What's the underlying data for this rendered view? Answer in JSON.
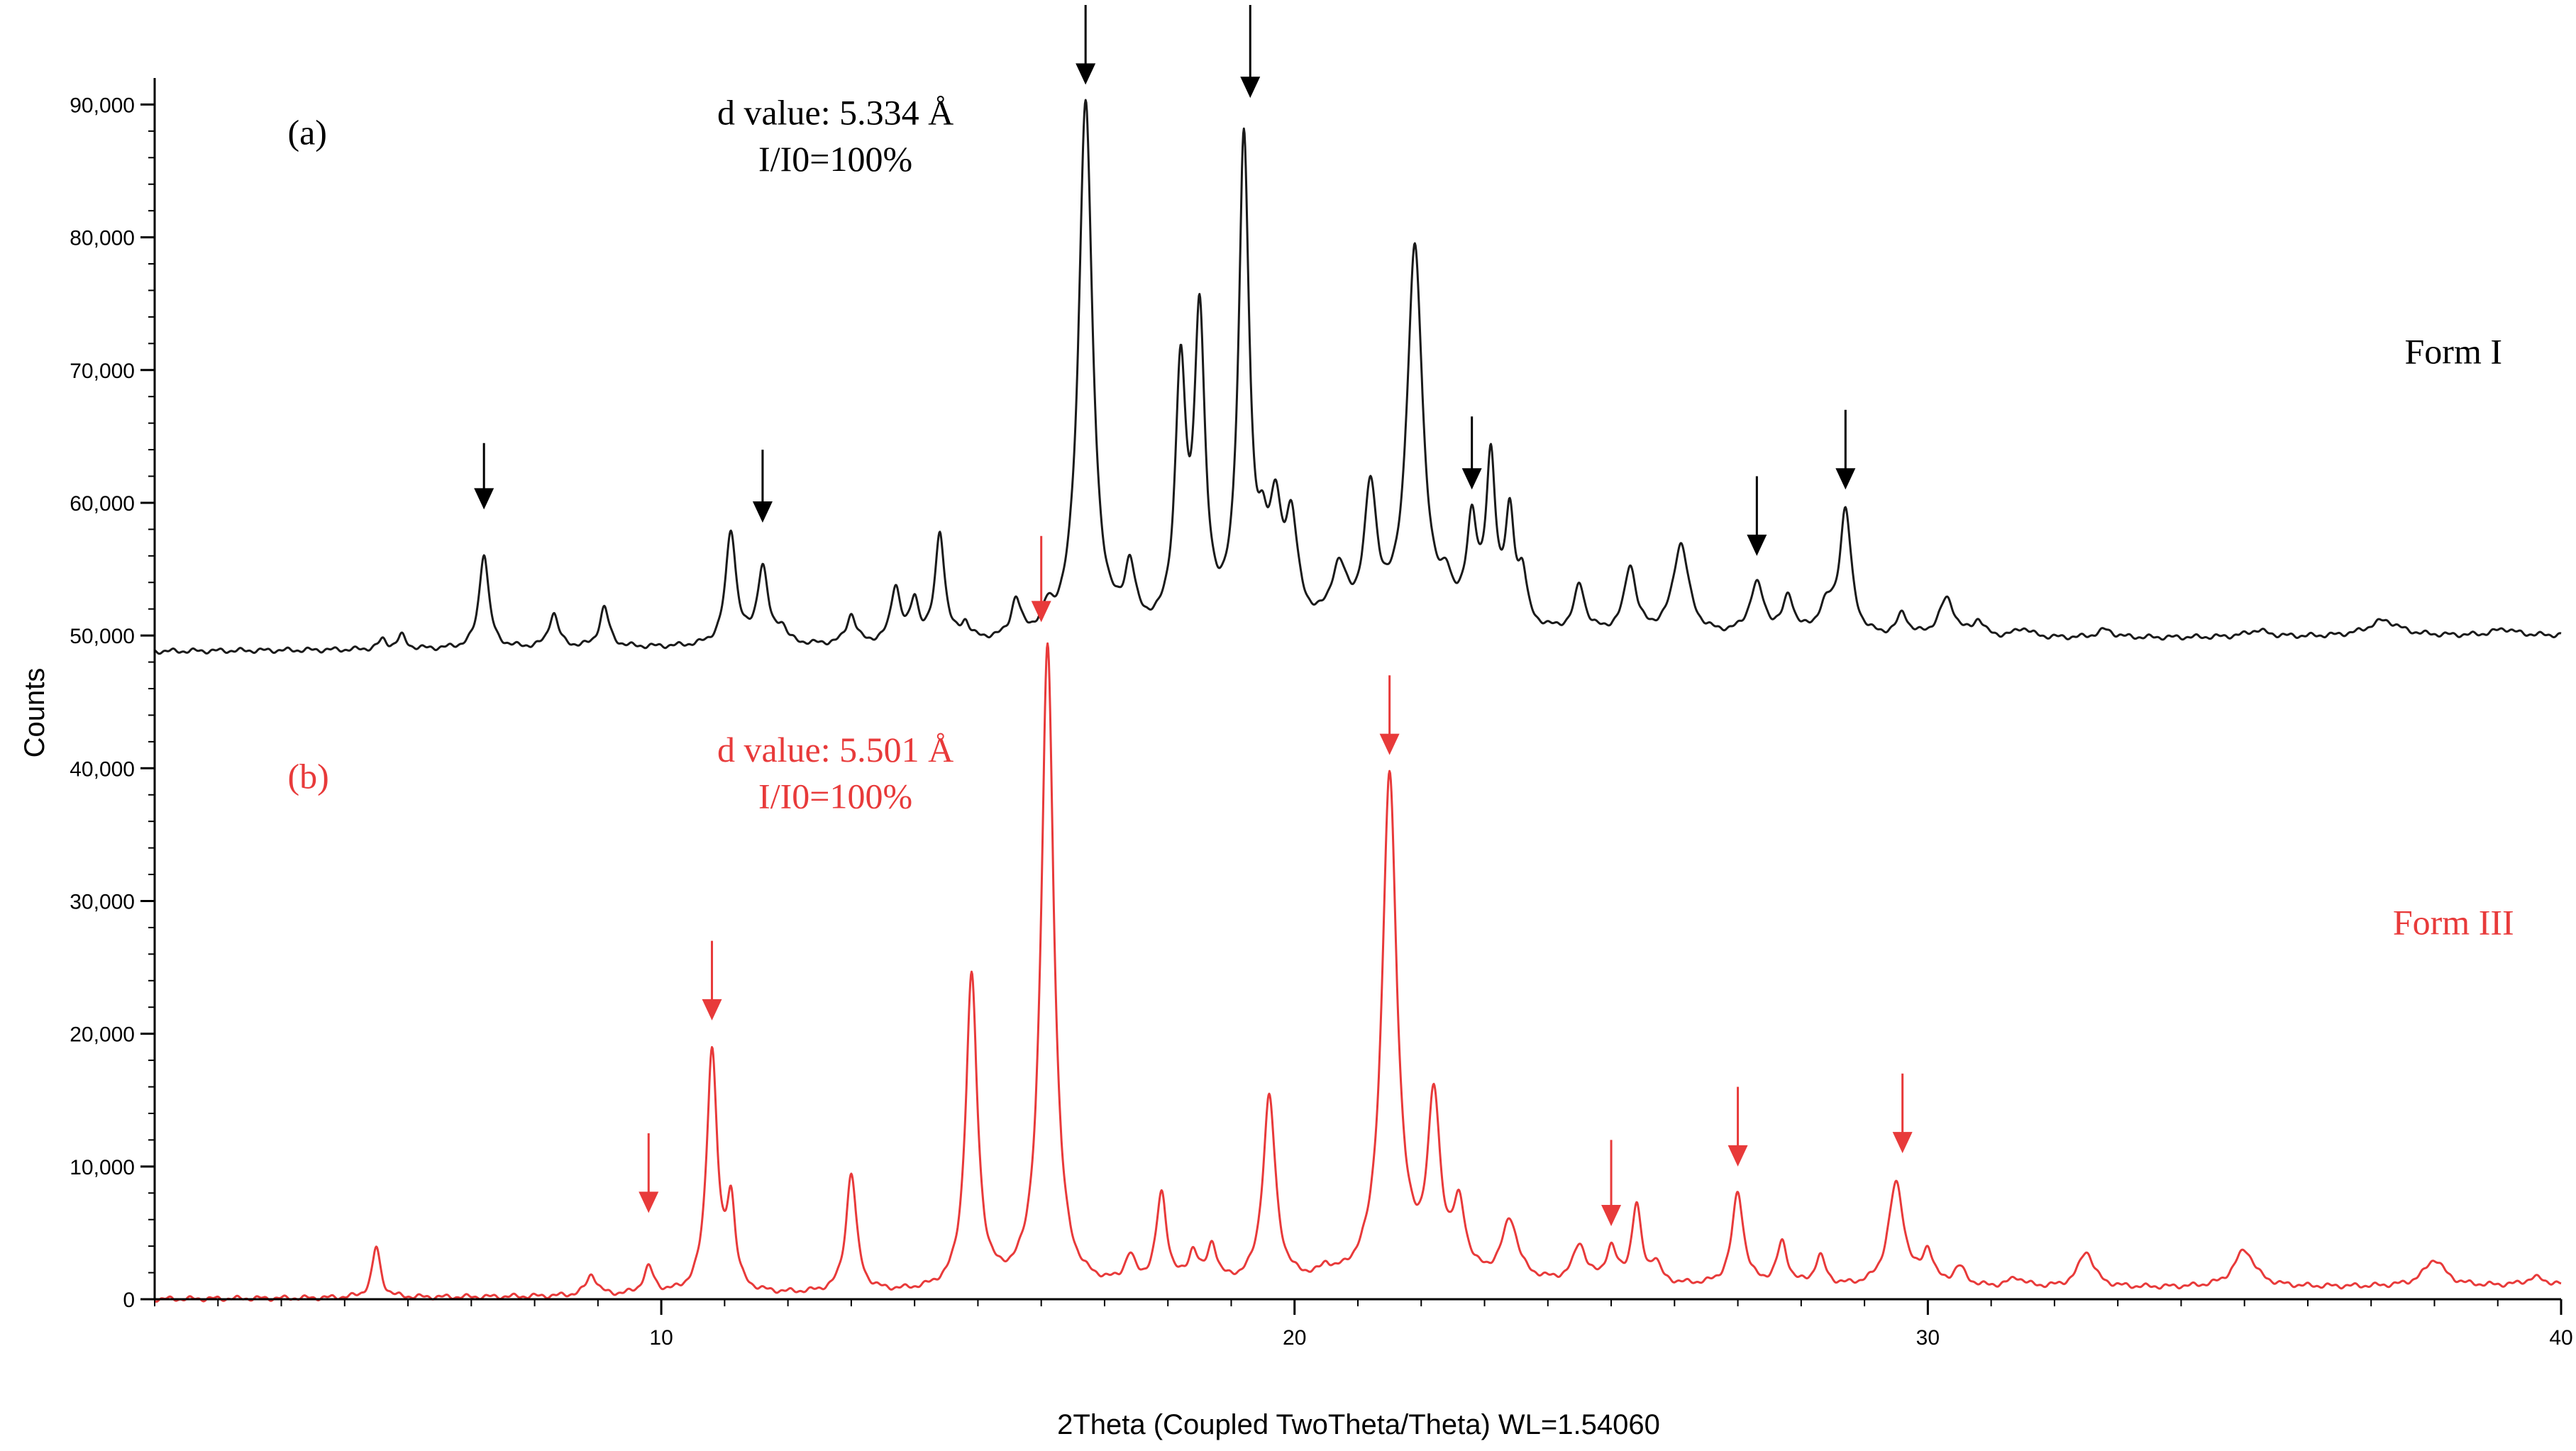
{
  "chart_data": {
    "type": "line",
    "xlabel": "2Theta (Coupled TwoTheta/Theta) WL=1.54060",
    "ylabel": "Counts",
    "xlim": [
      2,
      40
    ],
    "ylim": [
      0,
      92000
    ],
    "x_ticks": [
      10,
      20,
      30,
      40
    ],
    "y_ticks": [
      {
        "value": 0,
        "label": "0"
      },
      {
        "value": 10000,
        "label": "10,000"
      },
      {
        "value": 20000,
        "label": "20,000"
      },
      {
        "value": 30000,
        "label": "30,000"
      },
      {
        "value": 40000,
        "label": "40,000"
      },
      {
        "value": 50000,
        "label": "50,000"
      },
      {
        "value": 60000,
        "label": "60,000"
      },
      {
        "value": 70000,
        "label": "70,000"
      },
      {
        "value": 80000,
        "label": "80,000"
      },
      {
        "value": 90000,
        "label": "90,000"
      }
    ],
    "grid": false,
    "series": [
      {
        "name": "Form I",
        "panel_label": "(a)",
        "color": "#1a1a1a",
        "baseline_start": 48800,
        "baseline_end": 50000,
        "curve_start_x": 2,
        "peaks": [
          [
            5.6,
            700,
            0.08
          ],
          [
            5.9,
            1000,
            0.08
          ],
          [
            7.2,
            7200,
            0.09
          ],
          [
            8.3,
            2600,
            0.09
          ],
          [
            9.1,
            3000,
            0.09
          ],
          [
            11.1,
            8600,
            0.1
          ],
          [
            11.6,
            5800,
            0.1
          ],
          [
            11.9,
            1200,
            0.09
          ],
          [
            13.0,
            2200,
            0.09
          ],
          [
            13.7,
            4200,
            0.09
          ],
          [
            14.0,
            3000,
            0.08
          ],
          [
            14.4,
            8200,
            0.09
          ],
          [
            14.8,
            1200,
            0.08
          ],
          [
            15.6,
            2800,
            0.09
          ],
          [
            16.1,
            1500,
            0.1
          ],
          [
            16.7,
            40500,
            0.13
          ],
          [
            17.4,
            4500,
            0.1
          ],
          [
            18.2,
            19000,
            0.1
          ],
          [
            18.5,
            23000,
            0.1
          ],
          [
            19.2,
            36500,
            0.1
          ],
          [
            19.5,
            4500,
            0.1
          ],
          [
            19.7,
            7500,
            0.11
          ],
          [
            19.95,
            7500,
            0.12
          ],
          [
            20.7,
            4200,
            0.15
          ],
          [
            21.2,
            10000,
            0.12
          ],
          [
            21.9,
            28500,
            0.15
          ],
          [
            22.4,
            2500,
            0.1
          ],
          [
            22.8,
            7500,
            0.1
          ],
          [
            23.1,
            12200,
            0.09
          ],
          [
            23.4,
            8000,
            0.09
          ],
          [
            23.6,
            3500,
            0.08
          ],
          [
            24.5,
            3500,
            0.1
          ],
          [
            25.3,
            5000,
            0.11
          ],
          [
            26.1,
            6800,
            0.15
          ],
          [
            27.3,
            3800,
            0.14
          ],
          [
            27.8,
            2800,
            0.1
          ],
          [
            28.4,
            2000,
            0.15
          ],
          [
            28.7,
            9300,
            0.11
          ],
          [
            29.6,
            1700,
            0.1
          ],
          [
            30.3,
            2900,
            0.15
          ],
          [
            30.8,
            1200,
            0.1
          ],
          [
            31.5,
            700,
            0.15
          ],
          [
            32.8,
            600,
            0.15
          ],
          [
            35.2,
            500,
            0.2
          ],
          [
            37.2,
            1200,
            0.3
          ],
          [
            39.1,
            500,
            0.2
          ]
        ]
      },
      {
        "name": "Form III",
        "panel_label": "(b)",
        "color": "#e83a3a",
        "baseline_start": 0,
        "baseline_end": 1000,
        "curve_start_x": 2,
        "peaks": [
          [
            5.5,
            3800,
            0.08
          ],
          [
            8.9,
            1600,
            0.1
          ],
          [
            9.8,
            2000,
            0.1
          ],
          [
            10.8,
            18300,
            0.1
          ],
          [
            11.1,
            6500,
            0.08
          ],
          [
            13.0,
            9000,
            0.1
          ],
          [
            14.9,
            23500,
            0.11
          ],
          [
            16.1,
            48500,
            0.12
          ],
          [
            17.4,
            2000,
            0.1
          ],
          [
            17.9,
            6800,
            0.1
          ],
          [
            18.4,
            2300,
            0.09
          ],
          [
            18.7,
            2800,
            0.09
          ],
          [
            19.6,
            14000,
            0.12
          ],
          [
            20.5,
            700,
            0.1
          ],
          [
            21.5,
            38000,
            0.14
          ],
          [
            22.2,
            13000,
            0.12
          ],
          [
            22.6,
            5000,
            0.12
          ],
          [
            23.4,
            4500,
            0.15
          ],
          [
            24.5,
            2800,
            0.12
          ],
          [
            25.0,
            2500,
            0.1
          ],
          [
            25.4,
            5800,
            0.09
          ],
          [
            25.7,
            1500,
            0.09
          ],
          [
            27.0,
            7000,
            0.11
          ],
          [
            27.7,
            3200,
            0.1
          ],
          [
            28.3,
            2200,
            0.1
          ],
          [
            29.5,
            7800,
            0.15
          ],
          [
            30.0,
            2500,
            0.1
          ],
          [
            30.5,
            1400,
            0.12
          ],
          [
            31.4,
            700,
            0.15
          ],
          [
            32.5,
            2700,
            0.15
          ],
          [
            35.0,
            2800,
            0.2
          ],
          [
            38.0,
            2000,
            0.2
          ],
          [
            39.6,
            600,
            0.2
          ]
        ]
      }
    ],
    "annotations": [
      {
        "id": "form-i-label",
        "text": "Form I",
        "x": 38.3,
        "y": 70500,
        "color": "#000000",
        "anchor": "middle"
      },
      {
        "id": "form-iii-label",
        "text": "Form III",
        "x": 38.3,
        "y": 27500,
        "color": "#e83a3a",
        "anchor": "middle"
      },
      {
        "id": "panel-a-label",
        "text": "(a)",
        "x": 4.1,
        "y": 87000,
        "color": "#000000",
        "anchor": "start"
      },
      {
        "id": "panel-b-label",
        "text": "(b)",
        "x": 4.1,
        "y": 38500,
        "color": "#e83a3a",
        "anchor": "start"
      },
      {
        "id": "form-i-d-value",
        "text": "d value: 5.334 Å",
        "x": 12.75,
        "y": 88500,
        "color": "#000000",
        "anchor": "middle"
      },
      {
        "id": "form-i-intensity",
        "text": "I/I0=100%",
        "x": 12.75,
        "y": 85000,
        "color": "#000000",
        "anchor": "middle"
      },
      {
        "id": "form-iii-d-value",
        "text": "d value: 5.501 Å",
        "x": 12.75,
        "y": 40500,
        "color": "#e83a3a",
        "anchor": "middle"
      },
      {
        "id": "form-iii-intensity",
        "text": "I/I0=100%",
        "x": 12.75,
        "y": 37000,
        "color": "#e83a3a",
        "anchor": "middle"
      }
    ],
    "arrows": [
      {
        "x": 7.2,
        "y_top": 64500,
        "y_tip": 59500,
        "color": "#000000"
      },
      {
        "x": 11.6,
        "y_top": 64000,
        "y_tip": 58500,
        "color": "#000000"
      },
      {
        "x": 16.7,
        "y_top": 97500,
        "y_tip": 91500,
        "color": "#000000"
      },
      {
        "x": 19.3,
        "y_top": 97500,
        "y_tip": 90500,
        "color": "#000000"
      },
      {
        "x": 22.8,
        "y_top": 66500,
        "y_tip": 61000,
        "color": "#000000"
      },
      {
        "x": 27.3,
        "y_top": 62000,
        "y_tip": 56000,
        "color": "#000000"
      },
      {
        "x": 28.7,
        "y_top": 67000,
        "y_tip": 61000,
        "color": "#000000"
      },
      {
        "x": 16.0,
        "y_top": 57500,
        "y_tip": 51000,
        "color": "#e83a3a"
      },
      {
        "x": 9.8,
        "y_top": 12500,
        "y_tip": 6500,
        "color": "#e83a3a"
      },
      {
        "x": 10.8,
        "y_top": 27000,
        "y_tip": 21000,
        "color": "#e83a3a"
      },
      {
        "x": 21.5,
        "y_top": 47000,
        "y_tip": 41000,
        "color": "#e83a3a"
      },
      {
        "x": 25.0,
        "y_top": 12000,
        "y_tip": 5500,
        "color": "#e83a3a"
      },
      {
        "x": 27.0,
        "y_top": 16000,
        "y_tip": 10000,
        "color": "#e83a3a"
      },
      {
        "x": 29.6,
        "y_top": 17000,
        "y_tip": 11000,
        "color": "#e83a3a"
      }
    ]
  }
}
